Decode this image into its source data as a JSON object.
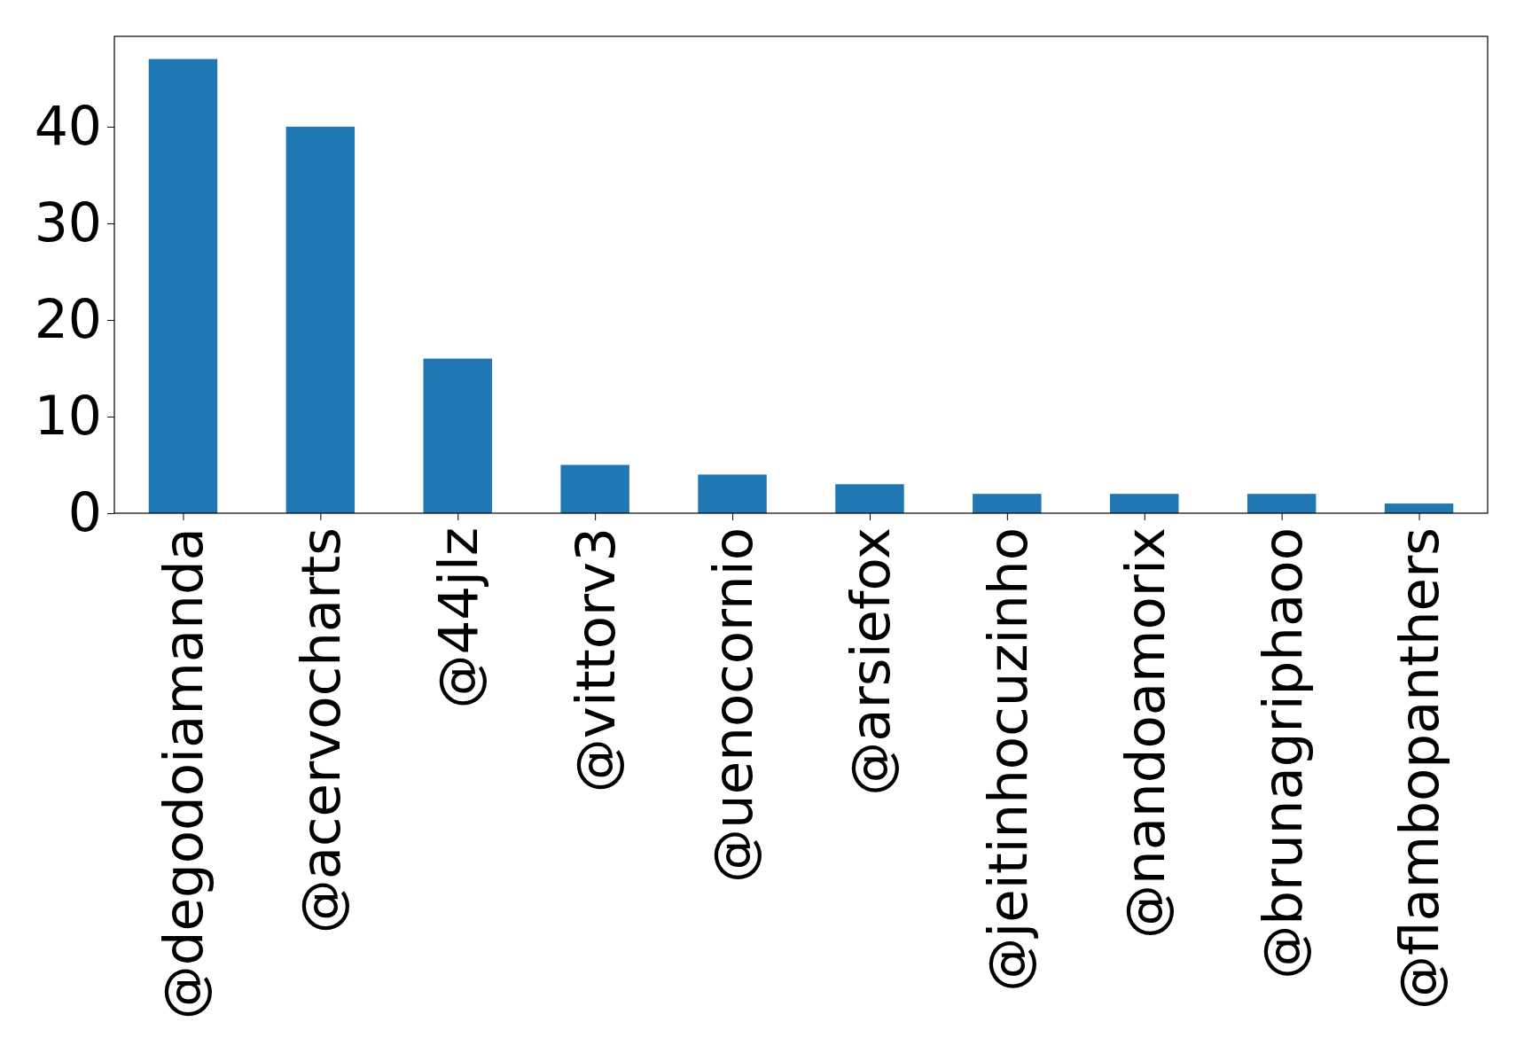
{
  "chart_data": {
    "type": "bar",
    "categories": [
      "@degodoiamanda",
      "@acervocharts",
      "@44jlz",
      "@vittorv3",
      "@uenocornio",
      "@arsiefox",
      "@jeitinhocuzinho",
      "@nandoamorix",
      "@brunagriphaoo",
      "@flambopanthers"
    ],
    "values": [
      47,
      40,
      16,
      5,
      4,
      3,
      2,
      2,
      2,
      1
    ],
    "color": "#1f77b4",
    "ylim": [
      0,
      49.35
    ],
    "yticks": [
      0,
      10,
      20,
      30,
      40
    ]
  }
}
